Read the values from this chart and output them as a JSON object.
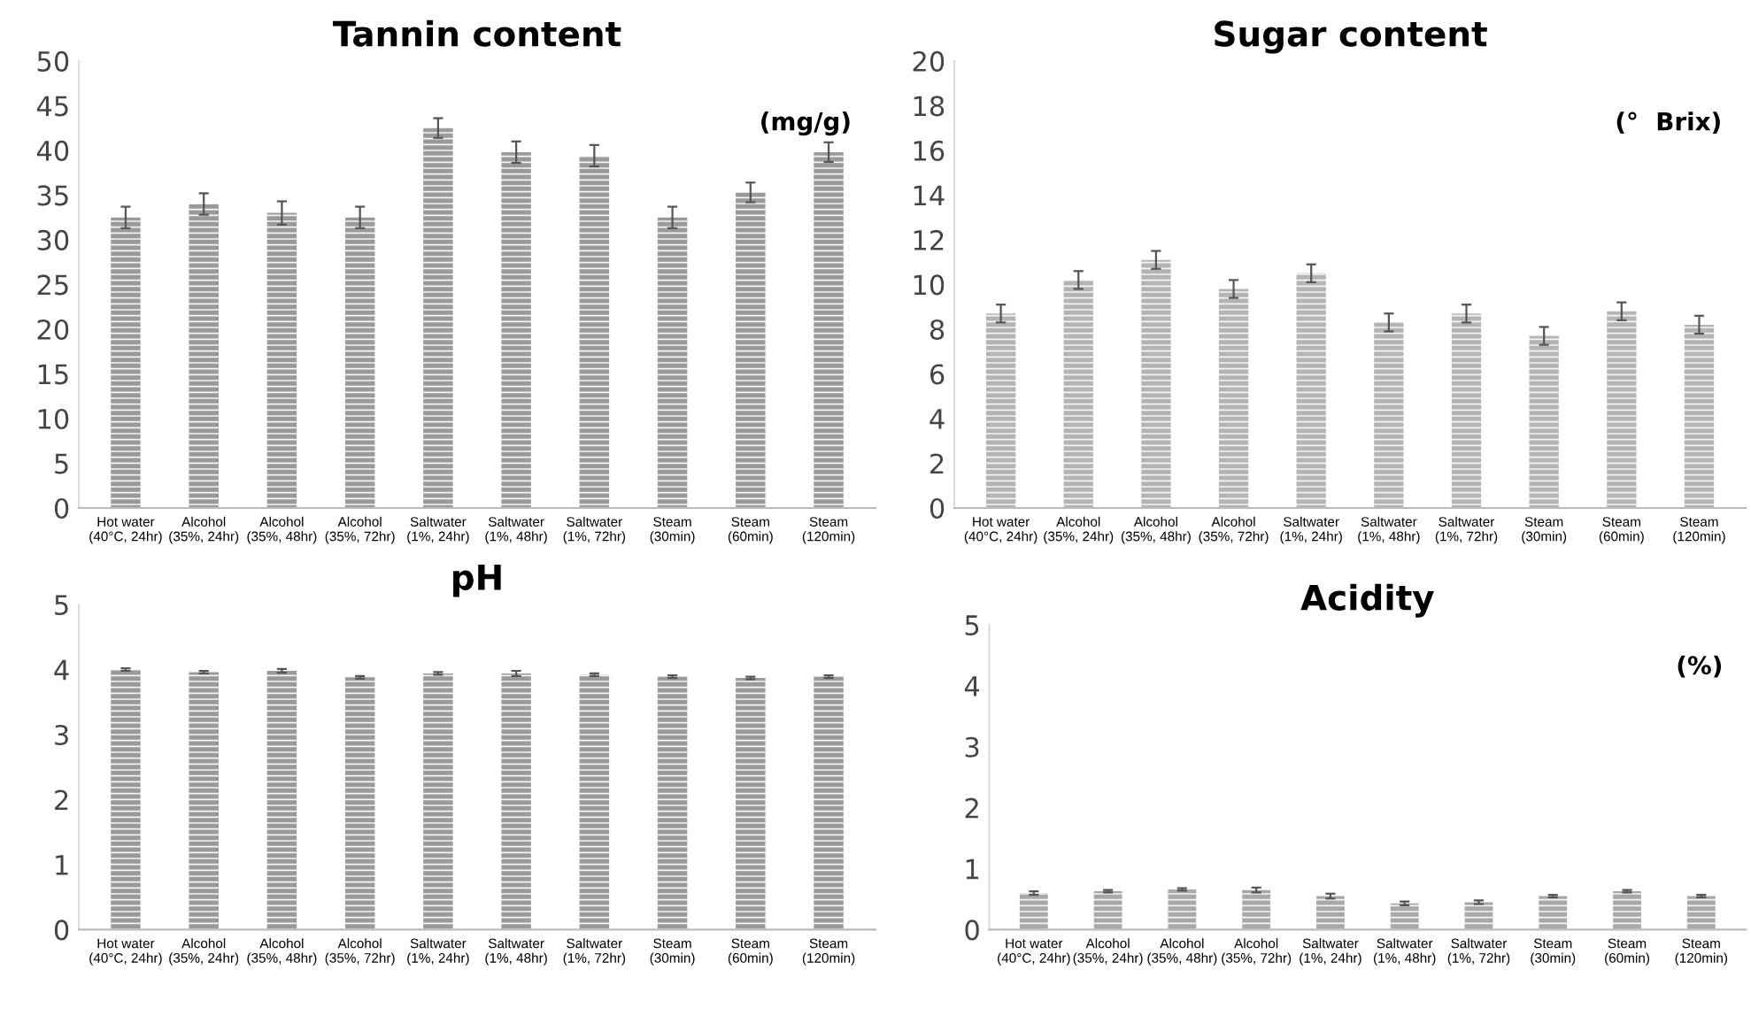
{
  "chart_data": [
    {
      "type": "bar",
      "title": "Tannin content",
      "annotations": [
        "(mg/g)"
      ],
      "categories": [
        "Hot water\n(40°C, 24hr)",
        "Alcohol\n(35%, 24hr)",
        "Alcohol\n(35%, 48hr)",
        "Alcohol\n(35%, 72hr)",
        "Saltwater\n(1%, 24hr)",
        "Saltwater\n(1%, 48hr)",
        "Saltwater\n(1%, 72hr)",
        "Steam\n(30min)",
        "Steam\n(60min)",
        "Steam\n(120min)"
      ],
      "values": [
        32.5,
        34,
        33,
        32.5,
        42.5,
        39.8,
        39.4,
        32.5,
        35.3,
        39.8
      ],
      "errors": [
        1.2,
        1.2,
        1.3,
        1.2,
        1.1,
        1.2,
        1.2,
        1.2,
        1.1,
        1.1
      ],
      "color": "#9a9a9a",
      "ylim": [
        0,
        50
      ],
      "yticks": [
        0,
        5,
        10,
        15,
        20,
        25,
        30,
        35,
        40,
        45,
        50
      ],
      "grid": false
    },
    {
      "type": "bar",
      "title": "Sugar content",
      "annotations": [
        "(°  Brix)"
      ],
      "categories": [
        "Hot water\n(40°C, 24hr)",
        "Alcohol\n(35%, 24hr)",
        "Alcohol\n(35%, 48hr)",
        "Alcohol\n(35%, 72hr)",
        "Saltwater\n(1%, 24hr)",
        "Saltwater\n(1%, 48hr)",
        "Saltwater\n(1%, 72hr)",
        "Steam\n(30min)",
        "Steam\n(60min)",
        "Steam\n(120min)"
      ],
      "values": [
        8.7,
        10.2,
        11.1,
        9.8,
        10.5,
        8.3,
        8.7,
        7.7,
        8.8,
        8.2
      ],
      "errors": [
        0.4,
        0.4,
        0.4,
        0.4,
        0.4,
        0.4,
        0.4,
        0.4,
        0.4,
        0.4
      ],
      "color": "#b4b4b4",
      "ylim": [
        0,
        20
      ],
      "yticks": [
        0,
        2,
        4,
        6,
        8,
        10,
        12,
        14,
        16,
        18,
        20
      ],
      "grid": false
    },
    {
      "type": "bar",
      "title": "pH",
      "categories": [
        "Hot water\n(40°C, 24hr)",
        "Alcohol\n(35%, 24hr)",
        "Alcohol\n(35%, 48hr)",
        "Alcohol\n(35%, 72hr)",
        "Saltwater\n(1%, 24hr)",
        "Saltwater\n(1%, 48hr)",
        "Saltwater\n(1%, 72hr)",
        "Steam\n(30min)",
        "Steam\n(60min)",
        "Steam\n(120min)"
      ],
      "values": [
        4.0,
        3.96,
        3.98,
        3.88,
        3.94,
        3.94,
        3.92,
        3.89,
        3.87,
        3.89
      ],
      "errors": [
        0.02,
        0.02,
        0.03,
        0.02,
        0.02,
        0.04,
        0.02,
        0.02,
        0.02,
        0.02
      ],
      "color": "#9a9a9a",
      "ylim": [
        0,
        5
      ],
      "yticks": [
        0,
        1,
        2,
        3,
        4,
        5
      ],
      "grid": false
    },
    {
      "type": "bar",
      "title": "Acidity",
      "annotations": [
        "(%)"
      ],
      "categories": [
        "Hot water\n(40°C, 24hr)",
        "Alcohol\n(35%, 24hr)",
        "Alcohol\n(35%, 48hr)",
        "Alcohol\n(35%, 72hr)",
        "Saltwater\n(1%, 24hr)",
        "Saltwater\n(1%, 48hr)",
        "Saltwater\n(1%, 72hr)",
        "Steam\n(30min)",
        "Steam\n(60min)",
        "Steam\n(120min)"
      ],
      "values": [
        0.6,
        0.63,
        0.66,
        0.65,
        0.55,
        0.43,
        0.45,
        0.55,
        0.63,
        0.55
      ],
      "errors": [
        0.03,
        0.02,
        0.02,
        0.04,
        0.04,
        0.03,
        0.03,
        0.02,
        0.02,
        0.02
      ],
      "color": "#a8a8a8",
      "ylim": [
        0,
        5
      ],
      "yticks": [
        0,
        1,
        2,
        3,
        4,
        5
      ],
      "grid": false
    }
  ]
}
